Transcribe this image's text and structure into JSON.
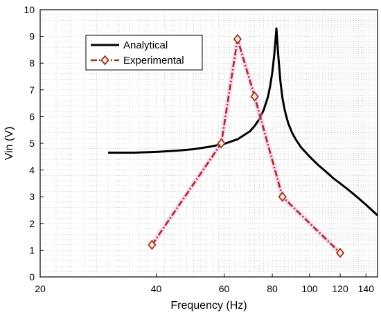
{
  "chart_data": {
    "type": "line",
    "xlabel": "Frequency (Hz)",
    "ylabel": "Vin (V)",
    "xscale": "log",
    "xlim": [
      20,
      150
    ],
    "ylim": [
      0,
      10
    ],
    "xticks": [
      20,
      40,
      60,
      80,
      100,
      120,
      140
    ],
    "yticks": [
      0,
      1,
      2,
      3,
      4,
      5,
      6,
      7,
      8,
      9,
      10
    ],
    "grid": "minor-dotted",
    "legend_position": "top-left",
    "series": [
      {
        "name": "Analytical",
        "style": "solid",
        "color": "#000000",
        "x": [
          30,
          35,
          40,
          45,
          50,
          55,
          60,
          65,
          70,
          72,
          74,
          76,
          78,
          79,
          80,
          81,
          82,
          83,
          84,
          85,
          86,
          87,
          88,
          90,
          92,
          95,
          100,
          105,
          110,
          115,
          120,
          125,
          130,
          135,
          140,
          145,
          150
        ],
        "y": [
          4.65,
          4.65,
          4.68,
          4.72,
          4.78,
          4.87,
          4.98,
          5.15,
          5.45,
          5.65,
          5.9,
          6.25,
          6.75,
          7.15,
          7.65,
          8.35,
          9.3,
          8.2,
          7.3,
          6.7,
          6.3,
          6.0,
          5.75,
          5.4,
          5.15,
          4.85,
          4.5,
          4.2,
          3.95,
          3.7,
          3.5,
          3.3,
          3.1,
          2.9,
          2.7,
          2.5,
          2.3
        ]
      },
      {
        "name": "Experimental",
        "style": "dash-dot",
        "marker": "diamond",
        "color": "#9a3324",
        "x": [
          39,
          59,
          65,
          72,
          85,
          120
        ],
        "y": [
          1.2,
          5.0,
          8.9,
          6.75,
          3.0,
          0.9
        ]
      }
    ]
  }
}
